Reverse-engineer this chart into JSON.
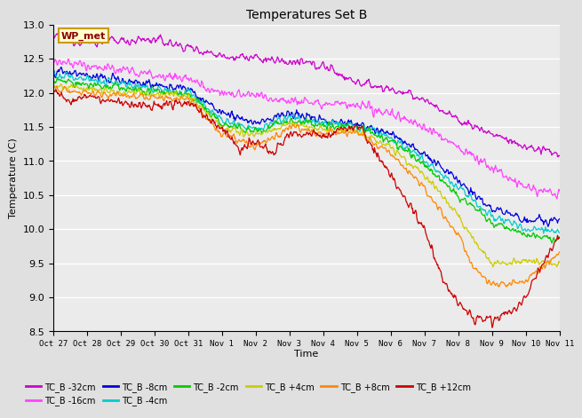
{
  "title": "Temperatures Set B",
  "xlabel": "Time",
  "ylabel": "Temperature (C)",
  "ylim": [
    8.5,
    13.0
  ],
  "yticks": [
    8.5,
    9.0,
    9.5,
    10.0,
    10.5,
    11.0,
    11.5,
    12.0,
    12.5,
    13.0
  ],
  "x_labels": [
    "Oct 27",
    "Oct 28",
    "Oct 29",
    "Oct 30",
    "Oct 31",
    "Nov 1",
    "Nov 2",
    "Nov 3",
    "Nov 4",
    "Nov 5",
    "Nov 6",
    "Nov 7",
    "Nov 8",
    "Nov 9",
    "Nov 10",
    "Nov 11"
  ],
  "annotation_text": "WP_met",
  "annotation_color": "#8B0000",
  "annotation_bg": "#ffffcc",
  "annotation_border": "#cc9900",
  "series_colors": {
    "TC_B -32cm": "#cc00cc",
    "TC_B -16cm": "#ff44ff",
    "TC_B -8cm": "#0000dd",
    "TC_B -4cm": "#00cccc",
    "TC_B -2cm": "#00cc00",
    "TC_B +4cm": "#cccc00",
    "TC_B +8cm": "#ff8800",
    "TC_B +12cm": "#cc0000"
  },
  "bg_color": "#e0e0e0",
  "plot_bg": "#ebebeb",
  "grid_color": "#ffffff",
  "n_points": 800
}
